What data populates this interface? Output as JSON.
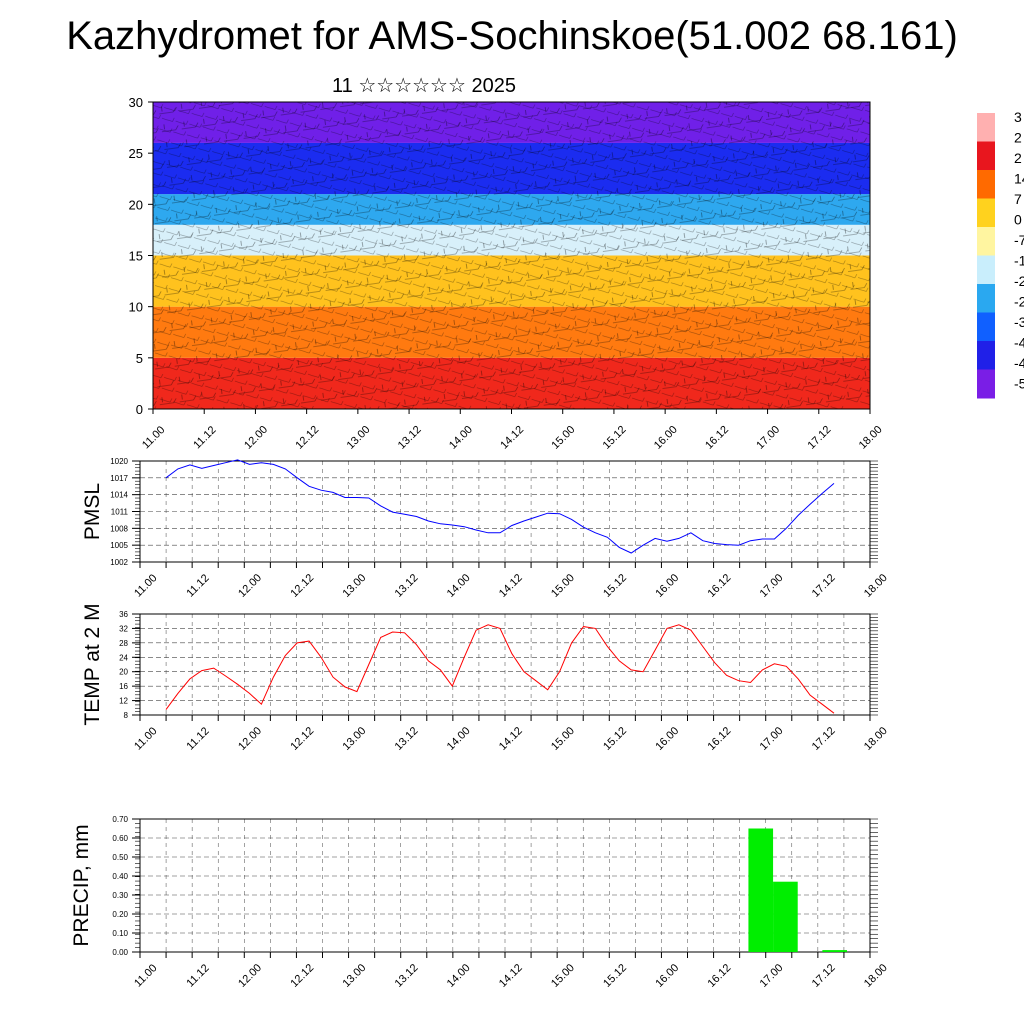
{
  "title": "Kazhydromet for AMS-Sochinskoe(51.002 68.161)",
  "subtitle": "11 ☆☆☆☆☆☆ 2025",
  "time_ticks": [
    "11.00",
    "11.12",
    "12.00",
    "12.12",
    "13.00",
    "13.12",
    "14.00",
    "14.12",
    "15.00",
    "15.12",
    "16.00",
    "16.12",
    "17.00",
    "17.12",
    "18.00"
  ],
  "chart_data": [
    {
      "type": "heatmap",
      "title": "",
      "ylabel": "",
      "ylim": [
        0,
        30
      ],
      "yticks": [
        "0",
        "5",
        "10",
        "15",
        "20",
        "25",
        "30"
      ],
      "colorbar_labels": [
        "3",
        "2",
        "2",
        "14",
        "7",
        "0",
        "-7",
        "-1",
        "-2",
        "-2",
        "-3",
        "-4",
        "-4",
        "-5"
      ],
      "colors": [
        "#ffb0b0",
        "#e8161e",
        "#ff6a00",
        "#ffd21e",
        "#fff5a0",
        "#c9eefc",
        "#2aa8f0",
        "#1060ff",
        "#2020e8",
        "#7a1ee6"
      ],
      "bands": [
        {
          "z": [
            0,
            5
          ],
          "color": "#f0281c"
        },
        {
          "z": [
            5,
            10
          ],
          "color": "#ff7a10"
        },
        {
          "z": [
            10,
            15
          ],
          "color": "#ffc21e"
        },
        {
          "z": [
            15,
            18
          ],
          "color": "#d8f0fa"
        },
        {
          "z": [
            18,
            21
          ],
          "color": "#2ea8ef"
        },
        {
          "z": [
            21,
            26
          ],
          "color": "#1b2cf0"
        },
        {
          "z": [
            26,
            31
          ],
          "color": "#7020e8"
        }
      ]
    },
    {
      "type": "line",
      "ylabel": "PMSL",
      "ylim": [
        1002,
        1020
      ],
      "yticks": [
        "1002",
        "1005",
        "1008",
        "1011",
        "1014",
        "1017",
        "1020"
      ],
      "color": "#0000ff",
      "series": [
        {
          "values": [
            1017.0,
            1018.6,
            1019.3,
            1018.7,
            1019.2,
            1019.7,
            1020.2,
            1019.4,
            1019.7,
            1019.4,
            1018.6,
            1017.0,
            1015.5,
            1014.8,
            1014.4,
            1013.5,
            1013.5,
            1013.4,
            1012.0,
            1010.9,
            1010.5,
            1010.1,
            1009.3,
            1008.8,
            1008.6,
            1008.3,
            1007.7,
            1007.2,
            1007.2,
            1008.5,
            1009.3,
            1010.0,
            1010.7,
            1010.6,
            1009.6,
            1008.2,
            1007.2,
            1006.4,
            1004.6,
            1003.6,
            1005.0,
            1006.2,
            1005.7,
            1006.2,
            1007.2,
            1005.8,
            1005.3,
            1005.1,
            1005.0,
            1005.8,
            1006.1,
            1006.1,
            1008.0,
            1010.3,
            1012.3,
            1014.2,
            1016.0
          ]
        }
      ]
    },
    {
      "type": "line",
      "ylabel": "TEMP at 2 M",
      "ylim": [
        8,
        36
      ],
      "yticks": [
        "8",
        "12",
        "16",
        "20",
        "24",
        "28",
        "32",
        "36"
      ],
      "color": "#ff0000",
      "series": [
        {
          "values": [
            9.5,
            14.0,
            18.0,
            20.3,
            21.0,
            18.8,
            16.5,
            14.0,
            11.0,
            18.5,
            24.5,
            28.0,
            28.5,
            24.0,
            18.5,
            15.8,
            14.5,
            22.0,
            29.5,
            31.0,
            30.8,
            27.5,
            23.0,
            20.5,
            16.0,
            24.0,
            31.5,
            33.0,
            32.0,
            25.0,
            20.0,
            17.5,
            15.0,
            20.0,
            28.0,
            32.5,
            32.0,
            27.0,
            23.0,
            20.5,
            20.0,
            26.0,
            32.0,
            33.0,
            31.5,
            27.0,
            22.5,
            19.0,
            17.5,
            17.0,
            20.5,
            22.2,
            21.5,
            18.0,
            13.5,
            11.0,
            8.5
          ]
        }
      ]
    },
    {
      "type": "bar",
      "ylabel": "PRECIP, mm",
      "ylim": [
        0,
        0.7
      ],
      "yticks": [
        "0.00",
        "0.10",
        "0.20",
        "0.30",
        "0.40",
        "0.50",
        "0.60",
        "0.70"
      ],
      "color": "#00ee00",
      "bars": [
        {
          "start": 72,
          "end": 75,
          "value": 0.65
        },
        {
          "start": 75,
          "end": 78,
          "value": 0.37
        },
        {
          "start": 78,
          "end": 81,
          "value": 0.0
        },
        {
          "start": 81,
          "end": 84,
          "value": 0.01
        }
      ]
    }
  ]
}
